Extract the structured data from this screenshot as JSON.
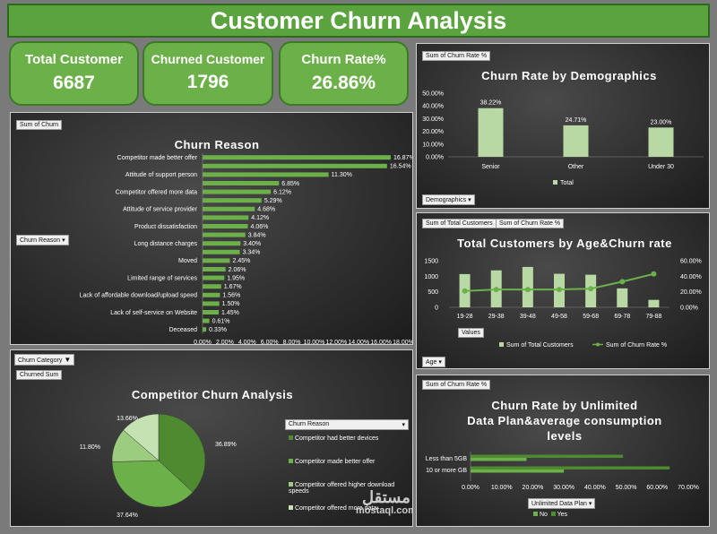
{
  "header": {
    "title": "Customer Churn Analysis"
  },
  "kpis": [
    {
      "label": "Total Customer",
      "value": "6687"
    },
    {
      "label": "Churned Customer",
      "value": "1796"
    },
    {
      "label": "Churn Rate%",
      "value": "26.86%"
    }
  ],
  "colors": {
    "green": "#6cb04a",
    "dark_green": "#4e8a30",
    "light_green": "#b8d9a3"
  },
  "churn_reason": {
    "chip_sum": "Sum of Churn",
    "chip_field": "Churn Reason",
    "title": "Churn Reason"
  },
  "demographics": {
    "chip_sum": "Sum of Churn Rate %",
    "chip_field": "Demographics",
    "title": "Churn Rate by Demographics",
    "legend": "Total"
  },
  "age": {
    "chip_a": "Sum of Total Customers",
    "chip_b": "Sum of Churn Rate %",
    "chip_values": "Values",
    "chip_field": "Age",
    "title": "Total Customers by Age&Churn rate",
    "legend_a": "Sum of Total Customers",
    "legend_b": "Sum of Churn Rate %"
  },
  "competitor": {
    "chip_category": "Churn Category",
    "chip_sum": "Churned Sum",
    "title": "Competitor Churn Analysis",
    "legend_header": "Churn Reason",
    "legend_items": [
      "Competitor had better devices",
      "Competitor made better offer",
      "Competitor offered higher download speeds",
      "Competitor offered more data"
    ]
  },
  "unlimited": {
    "chip_sum": "Sum of Churn Rate %",
    "chip_field": "Unlimited Data Plan",
    "title_lines": [
      "Churn Rate by Unlimited",
      "Data Plan&average consumption",
      "levels"
    ],
    "legend_no": "No",
    "legend_yes": "Yes"
  },
  "watermark": {
    "arabic": "مستقل",
    "latin": "mostaql.com"
  },
  "chart_data": [
    {
      "type": "bar",
      "orientation": "horizontal",
      "title": "Churn Reason",
      "categories": [
        "Competitor made better offer",
        "",
        "Attitude of support person",
        "",
        "Competitor offered more data",
        "",
        "Attitude of service provider",
        "",
        "Product dissatisfaction",
        "",
        "Long distance charges",
        "",
        "Moved",
        "",
        "Limited range of services",
        "",
        "Lack of affordable download/upload speed",
        "",
        "Lack of self-service on Website",
        "",
        "Deceased"
      ],
      "values": [
        16.87,
        16.54,
        11.3,
        6.85,
        6.12,
        5.29,
        4.68,
        4.12,
        4.06,
        3.84,
        3.4,
        3.34,
        2.45,
        2.06,
        1.95,
        1.67,
        1.56,
        1.5,
        1.45,
        0.61,
        0.33
      ],
      "value_labels": [
        "16.87%",
        "16.54%",
        "11.30%",
        "6.85%",
        "6.12%",
        "5.29%",
        "4.68%",
        "4.12%",
        "4.06%",
        "3.84%",
        "3.40%",
        "3.34%",
        "2.45%",
        "2.06%",
        "1.95%",
        "1.67%",
        "1.56%",
        "1.50%",
        "1.45%",
        "0.61%",
        "0.33%"
      ],
      "xlim": [
        0,
        18
      ],
      "x_ticks": [
        "0.00%",
        "2.00%",
        "4.00%",
        "6.00%",
        "8.00%",
        "10.00%",
        "12.00%",
        "14.00%",
        "16.00%",
        "18.00%"
      ]
    },
    {
      "type": "bar",
      "title": "Churn Rate by Demographics",
      "categories": [
        "Senior",
        "Other",
        "Under 30"
      ],
      "series": [
        {
          "name": "Total",
          "values": [
            38.22,
            24.71,
            23.0
          ]
        }
      ],
      "value_labels": [
        "38.22%",
        "24.71%",
        "23.00%"
      ],
      "ylim": [
        0,
        50
      ],
      "y_ticks": [
        "0.00%",
        "10.00%",
        "20.00%",
        "30.00%",
        "40.00%",
        "50.00%"
      ]
    },
    {
      "type": "bar",
      "title": "Total Customers by Age&Churn rate",
      "categories": [
        "19-28",
        "29-38",
        "39-48",
        "49-58",
        "59-68",
        "69-78",
        "79-88"
      ],
      "series": [
        {
          "name": "Sum of Total Customers",
          "type": "bar",
          "values": [
            1070,
            1190,
            1300,
            1080,
            1050,
            610,
            240
          ]
        },
        {
          "name": "Sum of Churn Rate %",
          "type": "line",
          "axis": "secondary",
          "values": [
            21,
            23,
            23,
            23,
            24,
            33,
            43
          ]
        }
      ],
      "ylim": [
        0,
        1500
      ],
      "y_ticks": [
        "0",
        "500",
        "1000",
        "1500"
      ],
      "y2lim": [
        0,
        60
      ],
      "y2_ticks": [
        "0.00%",
        "20.00%",
        "40.00%",
        "60.00%"
      ]
    },
    {
      "type": "pie",
      "title": "Competitor Churn Analysis",
      "categories": [
        "Competitor had better devices",
        "Competitor made better offer",
        "Competitor offered higher download speeds",
        "Competitor offered more data"
      ],
      "values": [
        36.89,
        37.64,
        11.8,
        13.66
      ],
      "value_labels": [
        "36.89%",
        "37.64%",
        "11.80%",
        "13.66%"
      ]
    },
    {
      "type": "bar",
      "orientation": "horizontal",
      "title": "Churn Rate by Unlimited Data Plan&average consumption levels",
      "categories": [
        "Less than 5GB",
        "10 or more GB"
      ],
      "series": [
        {
          "name": "No",
          "values": [
            18,
            30
          ]
        },
        {
          "name": "Yes",
          "values": [
            49,
            64
          ]
        }
      ],
      "xlim": [
        0,
        70
      ],
      "x_ticks": [
        "0.00%",
        "10.00%",
        "20.00%",
        "30.00%",
        "40.00%",
        "50.00%",
        "60.00%",
        "70.00%"
      ]
    }
  ]
}
